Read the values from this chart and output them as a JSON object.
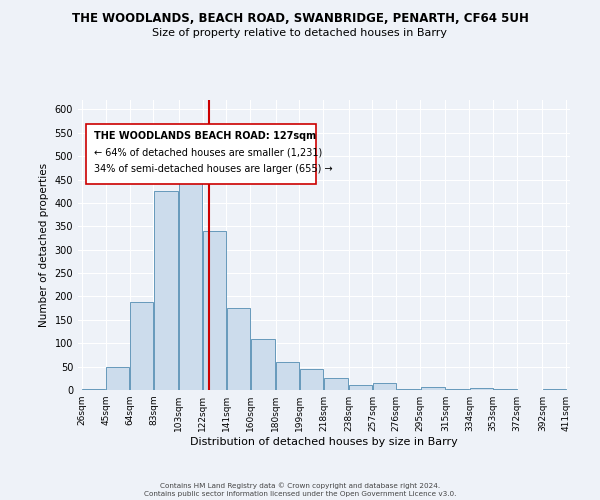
{
  "title": "THE WOODLANDS, BEACH ROAD, SWANBRIDGE, PENARTH, CF64 5UH",
  "subtitle": "Size of property relative to detached houses in Barry",
  "xlabel": "Distribution of detached houses by size in Barry",
  "ylabel": "Number of detached properties",
  "bar_color": "#ccdcec",
  "bar_edge_color": "#6699bb",
  "bg_color": "#eef2f8",
  "grid_color": "#ffffff",
  "vline_x": 127,
  "vline_color": "#cc0000",
  "categories": [
    "26sqm",
    "45sqm",
    "64sqm",
    "83sqm",
    "103sqm",
    "122sqm",
    "141sqm",
    "160sqm",
    "180sqm",
    "199sqm",
    "218sqm",
    "238sqm",
    "257sqm",
    "276sqm",
    "295sqm",
    "315sqm",
    "334sqm",
    "353sqm",
    "372sqm",
    "392sqm",
    "411sqm"
  ],
  "bin_edges": [
    26,
    45,
    64,
    83,
    103,
    122,
    141,
    160,
    180,
    199,
    218,
    238,
    257,
    276,
    295,
    315,
    334,
    353,
    372,
    392,
    411
  ],
  "bar_heights": [
    3,
    50,
    189,
    425,
    477,
    340,
    175,
    108,
    60,
    44,
    25,
    10,
    14,
    3,
    6,
    3,
    5,
    3,
    0,
    3
  ],
  "ylim": [
    0,
    620
  ],
  "yticks": [
    0,
    50,
    100,
    150,
    200,
    250,
    300,
    350,
    400,
    450,
    500,
    550,
    600
  ],
  "legend_text_line1": "THE WOODLANDS BEACH ROAD: 127sqm",
  "legend_text_line2": "← 64% of detached houses are smaller (1,231)",
  "legend_text_line3": "34% of semi-detached houses are larger (655) →",
  "footer_line1": "Contains HM Land Registry data © Crown copyright and database right 2024.",
  "footer_line2": "Contains public sector information licensed under the Open Government Licence v3.0."
}
